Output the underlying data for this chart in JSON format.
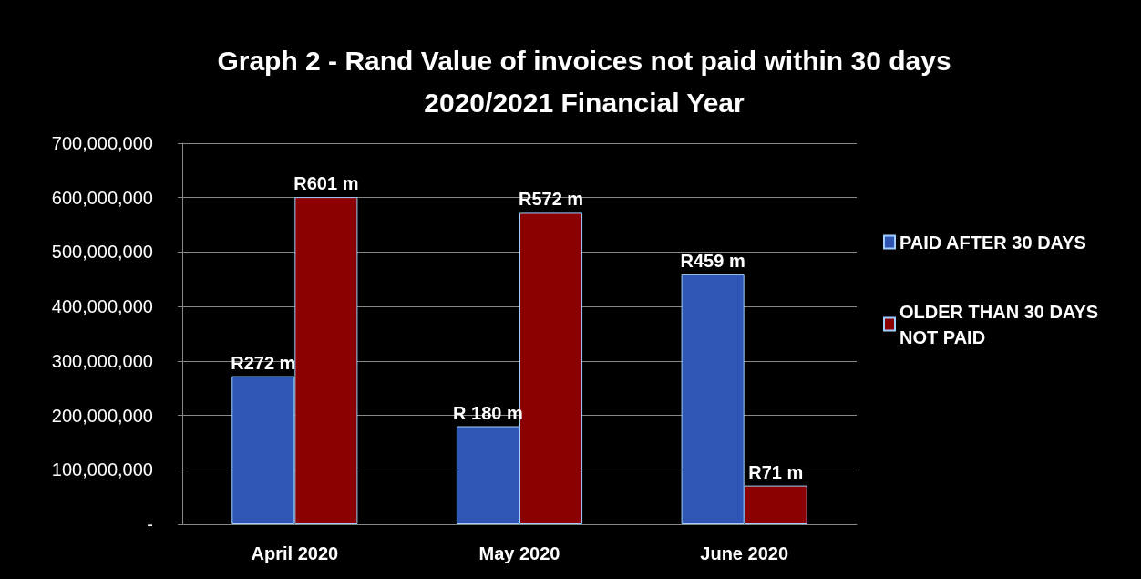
{
  "chart_data": {
    "type": "bar",
    "title": "Graph 2 - Rand Value of invoices not paid within 30 days\n2020/2021 Financial Year",
    "categories": [
      "April 2020",
      "May 2020",
      "June 2020"
    ],
    "series": [
      {
        "name": "PAID AFTER 30 DAYS",
        "color": "#2f56b4",
        "values": [
          272000000,
          180000000,
          459000000
        ],
        "value_labels": [
          "R272 m",
          "R 180 m",
          "R459 m"
        ]
      },
      {
        "name": "OLDER THAN 30 DAYS NOT PAID",
        "color": "#8b0000",
        "values": [
          601000000,
          572000000,
          71000000
        ],
        "value_labels": [
          "R601 m",
          "R572 m",
          "R71 m"
        ]
      }
    ],
    "ylim": [
      0,
      700000000
    ],
    "yticks": [
      {
        "value": 0,
        "label": "-"
      },
      {
        "value": 100000000,
        "label": "100,000,000"
      },
      {
        "value": 200000000,
        "label": "200,000,000"
      },
      {
        "value": 300000000,
        "label": "300,000,000"
      },
      {
        "value": 400000000,
        "label": "400,000,000"
      },
      {
        "value": 500000000,
        "label": "500,000,000"
      },
      {
        "value": 600000000,
        "label": "600,000,000"
      },
      {
        "value": 700000000,
        "label": "700,000,000"
      }
    ],
    "grid": "y",
    "legend": "right"
  }
}
